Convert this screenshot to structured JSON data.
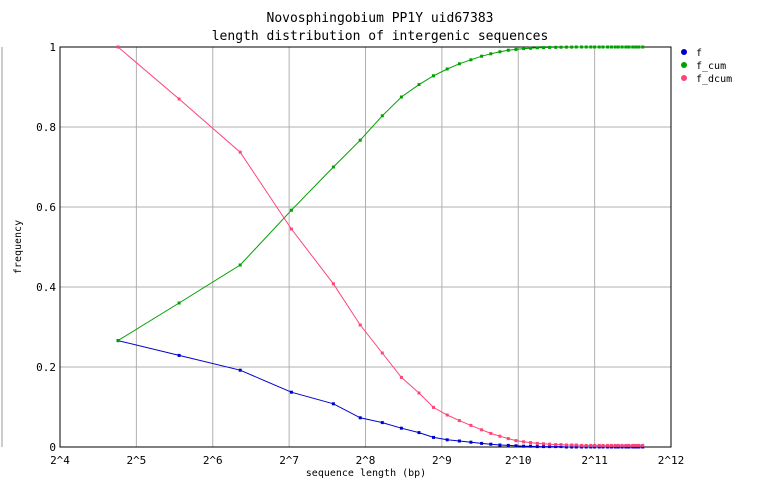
{
  "chart_data": {
    "type": "line",
    "title": "Novosphingobium PP1Y uid67383",
    "subtitle": "length distribution of intergenic sequences",
    "xlabel": "sequence length (bp)",
    "ylabel": "frequency",
    "x_scale": "log2",
    "xlim_log2": [
      4,
      12
    ],
    "ylim": [
      0,
      1
    ],
    "x_ticks": [
      "2^4",
      "2^5",
      "2^6",
      "2^7",
      "2^8",
      "2^9",
      "2^10",
      "2^11",
      "2^12"
    ],
    "y_ticks": [
      "0",
      "0.2",
      "0.4",
      "0.6",
      "0.8",
      "1"
    ],
    "grid": true,
    "legend_position": "right",
    "x_log2": [
      4.76,
      5.56,
      6.36,
      7.03,
      7.58,
      7.93,
      8.22,
      8.47,
      8.7,
      8.89,
      9.07,
      9.23,
      9.38,
      9.52,
      9.64,
      9.76,
      9.87,
      9.97,
      10.07,
      10.16,
      10.25,
      10.33,
      10.41,
      10.49,
      10.56,
      10.63,
      10.7,
      10.76,
      10.83,
      10.89,
      10.95,
      11.0,
      11.06,
      11.11,
      11.17,
      11.22,
      11.27,
      11.31,
      11.36,
      11.41,
      11.45,
      11.5,
      11.54,
      11.58,
      11.63
    ],
    "series": [
      {
        "name": "f",
        "color": "#0000cc",
        "values": [
          0.266,
          0.229,
          0.192,
          0.137,
          0.108,
          0.073,
          0.061,
          0.047,
          0.036,
          0.024,
          0.018,
          0.015,
          0.012,
          0.009,
          0.007,
          0.005,
          0.004,
          0.003,
          0.002,
          0.002,
          0.001,
          0.001,
          0.001,
          0.001,
          0.001,
          0.0,
          0.0,
          0.0,
          0.0,
          0.0,
          0.0,
          0.0,
          0.0,
          0.0,
          0.0,
          0.0,
          0.0,
          0.0,
          0.0,
          0.0,
          0.0,
          0.0,
          0.0,
          0.0,
          0.0
        ]
      },
      {
        "name": "f_cum",
        "color": "#00a000",
        "values": [
          0.266,
          0.36,
          0.455,
          0.592,
          0.7,
          0.767,
          0.828,
          0.875,
          0.906,
          0.928,
          0.945,
          0.958,
          0.968,
          0.977,
          0.983,
          0.988,
          0.992,
          0.994,
          0.996,
          0.997,
          0.998,
          0.9985,
          0.999,
          0.9993,
          0.9995,
          0.9997,
          0.9998,
          0.9999,
          1,
          1,
          1,
          1,
          1,
          1,
          1,
          1,
          1,
          1,
          1,
          1,
          1,
          1,
          1,
          1,
          1
        ]
      },
      {
        "name": "f_dcum",
        "color": "#ff4477",
        "values": [
          1.0,
          0.87,
          0.737,
          0.545,
          0.408,
          0.305,
          0.235,
          0.174,
          0.135,
          0.099,
          0.08,
          0.066,
          0.054,
          0.043,
          0.034,
          0.027,
          0.021,
          0.016,
          0.013,
          0.011,
          0.009,
          0.008,
          0.007,
          0.006,
          0.006,
          0.005,
          0.005,
          0.005,
          0.004,
          0.004,
          0.004,
          0.004,
          0.004,
          0.004,
          0.004,
          0.004,
          0.004,
          0.004,
          0.004,
          0.004,
          0.004,
          0.004,
          0.004,
          0.004,
          0.004
        ]
      }
    ]
  }
}
